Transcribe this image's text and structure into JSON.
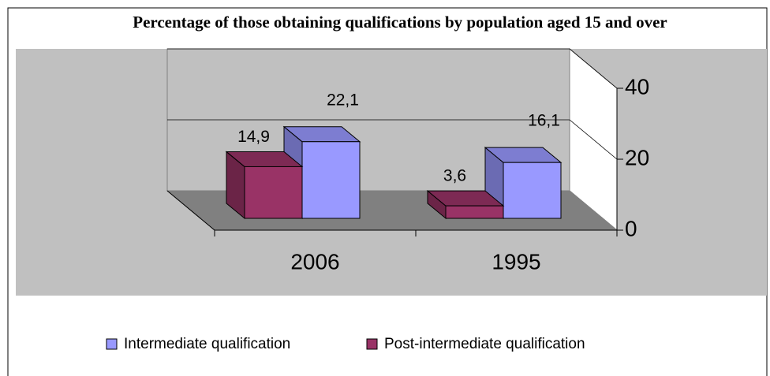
{
  "chart_data": {
    "type": "bar3d",
    "title": "Percentage of those obtaining qualifications by population aged 15 and over",
    "categories": [
      "2006",
      "1995"
    ],
    "series": [
      {
        "name": "Intermediate qualification",
        "color": "#9999ff",
        "values": [
          22.1,
          16.1
        ],
        "value_labels": [
          "22,1",
          "16,1"
        ]
      },
      {
        "name": "Post-intermediate qualification",
        "color": "#993366",
        "values": [
          14.9,
          3.6
        ],
        "value_labels": [
          "14,9",
          "3,6"
        ]
      }
    ],
    "ylim": [
      0,
      40
    ],
    "yticks": [
      0,
      20,
      40
    ],
    "grid": true,
    "legend": "bottom"
  }
}
